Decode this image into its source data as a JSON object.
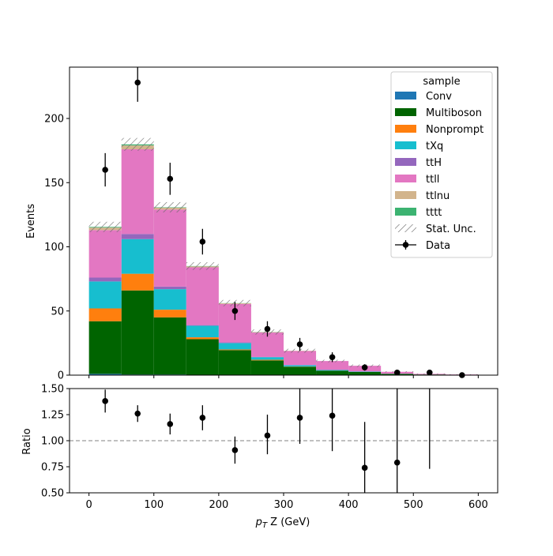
{
  "chart_data": [
    {
      "type": "bar",
      "stacked": true,
      "xlabel": "",
      "ylabel": "Events",
      "xlim": [
        -30,
        630
      ],
      "ylim": [
        0,
        240
      ],
      "yticks": [
        0,
        50,
        100,
        150,
        200
      ],
      "grid": false,
      "bin_edges": [
        0,
        50,
        100,
        150,
        200,
        250,
        300,
        350,
        400,
        450,
        500,
        550,
        600
      ],
      "legend": {
        "title": "sample",
        "placement": "top-right",
        "stat_unc_label": "Stat. Unc.",
        "data_label": "Data"
      },
      "series": [
        {
          "name": "Conv",
          "color": "#1f77b4",
          "values": [
            1,
            0.5,
            0.5,
            0.3,
            0.2,
            0.1,
            0.1,
            0,
            0,
            0,
            0,
            0
          ]
        },
        {
          "name": "Multiboson",
          "color": "#006400",
          "values": [
            41,
            65.5,
            44.5,
            27.7,
            19.3,
            11.4,
            6.4,
            3.5,
            2.5,
            1,
            0.5,
            0.2
          ]
        },
        {
          "name": "Nonprompt",
          "color": "#ff7f0e",
          "values": [
            10,
            13,
            6,
            1.5,
            0.5,
            0.5,
            0.2,
            0,
            0,
            0,
            0,
            0
          ]
        },
        {
          "name": "tXq",
          "color": "#17becf",
          "values": [
            21,
            27,
            16,
            9,
            5,
            2,
            1,
            0.5,
            0.3,
            0.1,
            0,
            0
          ]
        },
        {
          "name": "ttH",
          "color": "#9467bd",
          "values": [
            3,
            4,
            2,
            0.5,
            0.5,
            0.2,
            0.1,
            0,
            0,
            0,
            0,
            0
          ]
        },
        {
          "name": "ttll",
          "color": "#e377c2",
          "values": [
            37,
            66,
            60,
            45,
            30,
            19,
            11,
            7,
            4.5,
            1.5,
            0.5,
            0.3
          ]
        },
        {
          "name": "ttlnu",
          "color": "#d2b48c",
          "values": [
            2,
            3,
            1.5,
            0.8,
            0.5,
            0.3,
            0.2,
            0,
            0,
            0,
            0,
            0
          ]
        },
        {
          "name": "tttt",
          "color": "#3cb371",
          "values": [
            0.5,
            0.8,
            0.3,
            0.2,
            0.1,
            0.1,
            0,
            0,
            0,
            0,
            0,
            0
          ]
        }
      ],
      "stat_unc": [
        4,
        5,
        4,
        3,
        2.5,
        2,
        1.5,
        1,
        1,
        0.5,
        0.3,
        0.2
      ],
      "data": {
        "x": [
          25,
          75,
          125,
          175,
          225,
          275,
          325,
          375,
          425,
          475,
          525,
          575
        ],
        "y": [
          160,
          228,
          153,
          104,
          50,
          36,
          24,
          14,
          6,
          2,
          2,
          0
        ],
        "err": [
          13,
          15,
          12.5,
          10,
          7,
          6,
          5,
          3.8,
          2.5,
          1.4,
          1.4,
          0.8
        ]
      }
    },
    {
      "type": "scatter",
      "xlabel": "p_T Z (GeV)",
      "ylabel": "Ratio",
      "xlim": [
        -30,
        630
      ],
      "ylim": [
        0.5,
        1.5
      ],
      "xticks": [
        0,
        100,
        200,
        300,
        400,
        500,
        600
      ],
      "yticks": [
        0.5,
        0.75,
        1.0,
        1.25,
        1.5
      ],
      "ytick_labels": [
        "0.50",
        "0.75",
        "1.00",
        "1.25",
        "1.50"
      ],
      "reference_line": 1.0,
      "x": [
        25,
        75,
        125,
        175,
        225,
        275,
        325,
        375,
        425,
        475,
        525
      ],
      "y": [
        1.38,
        1.26,
        1.16,
        1.22,
        0.91,
        1.05,
        1.22,
        1.24,
        0.74,
        0.79,
        null
      ],
      "err_low": [
        0.11,
        0.08,
        0.1,
        0.12,
        0.13,
        0.18,
        0.25,
        0.34,
        0.44,
        0.3,
        null
      ],
      "err_high": [
        0.11,
        0.08,
        0.1,
        0.12,
        0.13,
        0.2,
        0.3,
        0.4,
        0.44,
        0.75,
        null
      ],
      "line_only": [
        {
          "x": 525,
          "low": 0.73,
          "high": 1.5
        }
      ]
    }
  ]
}
